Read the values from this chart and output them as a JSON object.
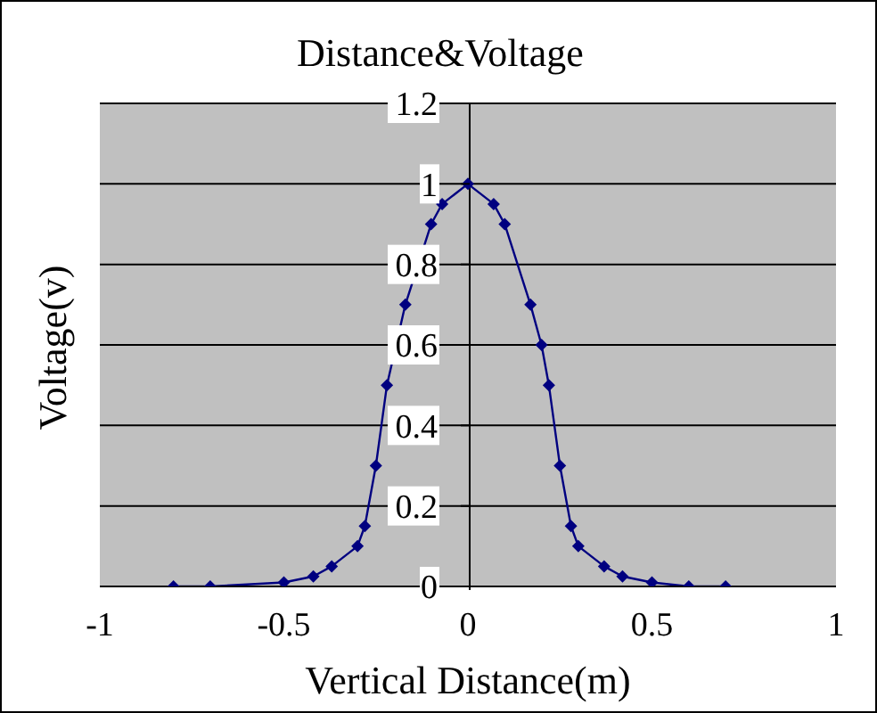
{
  "chart_data": {
    "type": "line",
    "title": "Distance&Voltage",
    "xlabel": "Vertical Distance(m)",
    "ylabel": "Voltage(v)",
    "x": [
      -0.8,
      -0.7,
      -0.5,
      -0.42,
      -0.37,
      -0.3,
      -0.28,
      -0.25,
      -0.22,
      -0.17,
      -0.1,
      -0.07,
      0,
      0.07,
      0.1,
      0.17,
      0.2,
      0.22,
      0.25,
      0.28,
      0.3,
      0.37,
      0.42,
      0.5,
      0.6,
      0.7
    ],
    "series": [
      {
        "color": "#000080",
        "values": [
          0,
          0,
          0.01,
          0.025,
          0.05,
          0.1,
          0.15,
          0.3,
          0.5,
          0.7,
          0.9,
          0.95,
          1,
          0.95,
          0.9,
          0.7,
          0.6,
          0.5,
          0.3,
          0.15,
          0.1,
          0.05,
          0.025,
          0.01,
          0,
          0
        ]
      }
    ],
    "xlim": [
      -1,
      1
    ],
    "xticks": [
      -1,
      -0.5,
      0,
      0.5,
      1
    ],
    "ylim": [
      0,
      1.2
    ],
    "yticks": [
      0,
      0.2,
      0.4,
      0.6,
      0.8,
      1,
      1.2
    ],
    "grid": "y",
    "legend": false,
    "marker": "diamond",
    "line_style": "solid"
  }
}
